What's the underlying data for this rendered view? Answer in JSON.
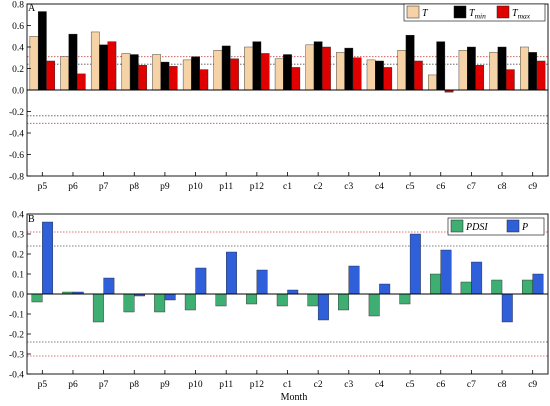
{
  "colors": {
    "T": "#f5d3a6",
    "Tmin": "#000000",
    "Tmax": "#e00000",
    "PDSI": "#3fae72",
    "P": "#2f5fd9"
  },
  "chart_data": [
    {
      "type": "bar",
      "panel_label": "A",
      "categories": [
        "p5",
        "p6",
        "p7",
        "p8",
        "p9",
        "p10",
        "p11",
        "p12",
        "c1",
        "c2",
        "c3",
        "c4",
        "c5",
        "c6",
        "c7",
        "c8",
        "c9"
      ],
      "ylim": [
        -0.8,
        0.8
      ],
      "yticks": [
        "0.8",
        "0.6",
        "0.4",
        "0.2",
        "0.0",
        "-0.2",
        "-0.4",
        "-0.6",
        "-0.8"
      ],
      "ytick_values": [
        0.8,
        0.6,
        0.4,
        0.2,
        0.0,
        -0.2,
        -0.4,
        -0.6,
        -0.8
      ],
      "reference_lines": [
        0.24,
        0.31,
        -0.24,
        -0.31
      ],
      "legend": [
        {
          "key": "T",
          "main": "T",
          "sub": ""
        },
        {
          "key": "Tmin",
          "main": "T",
          "sub": "min"
        },
        {
          "key": "Tmax",
          "main": "T",
          "sub": "max"
        }
      ],
      "series": [
        {
          "key": "T",
          "values": [
            0.5,
            0.31,
            0.54,
            0.34,
            0.33,
            0.28,
            0.37,
            0.4,
            0.29,
            0.42,
            0.35,
            0.28,
            0.37,
            0.14,
            0.37,
            0.35,
            0.4
          ]
        },
        {
          "key": "Tmin",
          "values": [
            0.73,
            0.52,
            0.42,
            0.33,
            0.26,
            0.31,
            0.41,
            0.45,
            0.33,
            0.45,
            0.39,
            0.27,
            0.51,
            0.45,
            0.4,
            0.4,
            0.35
          ]
        },
        {
          "key": "Tmax",
          "values": [
            0.27,
            0.15,
            0.45,
            0.23,
            0.22,
            0.19,
            0.29,
            0.34,
            0.21,
            0.4,
            0.3,
            0.21,
            0.27,
            -0.02,
            0.23,
            0.19,
            0.27
          ]
        }
      ]
    },
    {
      "type": "bar",
      "panel_label": "B",
      "categories": [
        "p5",
        "p6",
        "p7",
        "p8",
        "p9",
        "p10",
        "p11",
        "p12",
        "c1",
        "c2",
        "c3",
        "c4",
        "c5",
        "c6",
        "c7",
        "c8",
        "c9"
      ],
      "ylim": [
        -0.4,
        0.4
      ],
      "yticks": [
        "0.4",
        "0.3",
        "0.2",
        "0.1",
        "0.0",
        "-0.1",
        "-0.2",
        "-0.3",
        "-0.4"
      ],
      "ytick_values": [
        0.4,
        0.3,
        0.2,
        0.1,
        0.0,
        -0.1,
        -0.2,
        -0.3,
        -0.4
      ],
      "reference_lines": [
        0.24,
        0.31,
        -0.24,
        -0.31
      ],
      "xlabel": "Month",
      "legend": [
        {
          "key": "PDSI",
          "main": "PDSI",
          "sub": ""
        },
        {
          "key": "P",
          "main": "P",
          "sub": ""
        }
      ],
      "series": [
        {
          "key": "PDSI",
          "values": [
            -0.04,
            0.01,
            -0.14,
            -0.09,
            -0.09,
            -0.08,
            -0.06,
            -0.05,
            -0.06,
            -0.06,
            -0.08,
            -0.11,
            -0.05,
            0.1,
            0.06,
            0.07,
            0.07
          ]
        },
        {
          "key": "P",
          "values": [
            0.36,
            0.01,
            0.08,
            -0.01,
            -0.03,
            0.13,
            0.21,
            0.12,
            0.02,
            -0.13,
            0.14,
            0.05,
            0.3,
            0.22,
            0.16,
            -0.14,
            0.1
          ]
        }
      ]
    }
  ]
}
